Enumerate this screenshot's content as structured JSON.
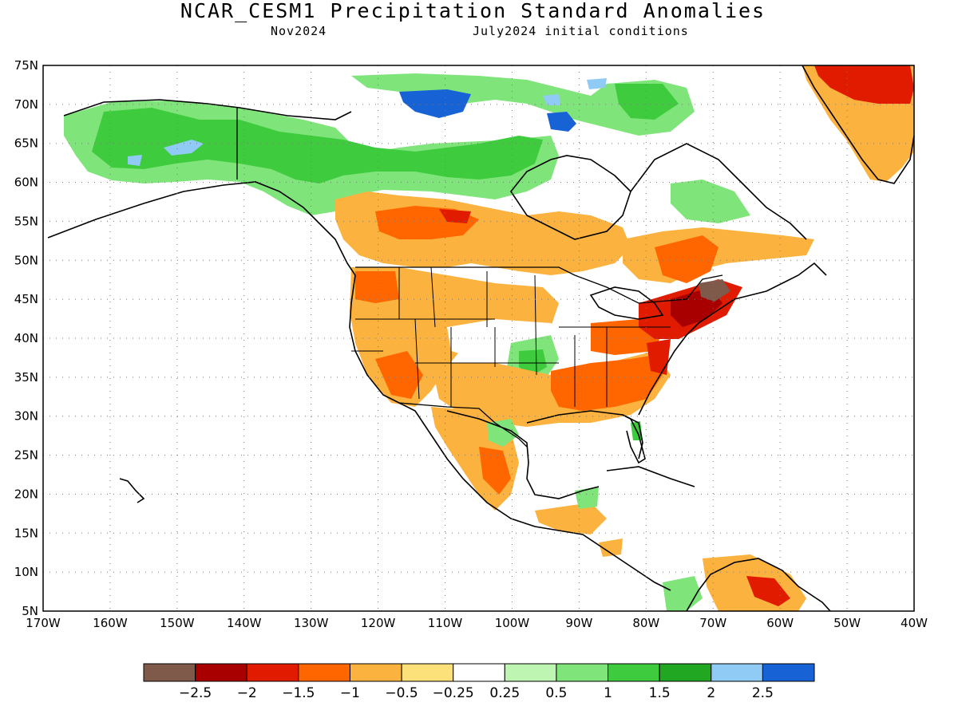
{
  "header": {
    "title": "NCAR_CESM1 Precipitation Standard Anomalies",
    "target_month": "Nov2024",
    "init_conditions": "July2024 initial conditions"
  },
  "map": {
    "lon_range": [
      -170,
      -40
    ],
    "lat_range": [
      5,
      75
    ],
    "lat_ticks": [
      "75N",
      "70N",
      "65N",
      "60N",
      "55N",
      "50N",
      "45N",
      "40N",
      "35N",
      "30N",
      "25N",
      "20N",
      "15N",
      "10N",
      "5N"
    ],
    "lon_ticks": [
      "170W",
      "160W",
      "150W",
      "140W",
      "130W",
      "120W",
      "110W",
      "100W",
      "90W",
      "80W",
      "70W",
      "60W",
      "50W",
      "40W"
    ],
    "gridlines": "dotted"
  },
  "legend": {
    "colors": [
      "#7f5a4b",
      "#a80000",
      "#e01b00",
      "#ff6600",
      "#fcb23f",
      "#fce07a",
      "#ffffff",
      "#bff5b2",
      "#7fe57a",
      "#3ecb3e",
      "#22a722",
      "#8fcbf5",
      "#1763d6"
    ],
    "labels": [
      "−2.5",
      "−2",
      "−1.5",
      "−1",
      "−0.5",
      "−0.25",
      "0.25",
      "0.5",
      "1",
      "1.5",
      "2",
      "2.5"
    ]
  },
  "anomaly_regions": [
    {
      "name": "alaska-wet",
      "color": "#7fe57a"
    },
    {
      "name": "northern-canada-wet",
      "color": "#3ecb3e"
    },
    {
      "name": "hudson-bay-very-wet",
      "color": "#1763d6"
    },
    {
      "name": "greenland-dry",
      "color": "#e01b00"
    },
    {
      "name": "western-canada-dry",
      "color": "#fcb23f"
    },
    {
      "name": "western-us-dry",
      "color": "#fcb23f"
    },
    {
      "name": "northeast-us-very-dry",
      "color": "#7f5a4b"
    },
    {
      "name": "southeast-us-dry",
      "color": "#ff6600"
    },
    {
      "name": "southern-plains-wet",
      "color": "#3ecb3e"
    },
    {
      "name": "mexico-dry",
      "color": "#fcb23f"
    },
    {
      "name": "caribbean-dry",
      "color": "#e01b00"
    }
  ]
}
